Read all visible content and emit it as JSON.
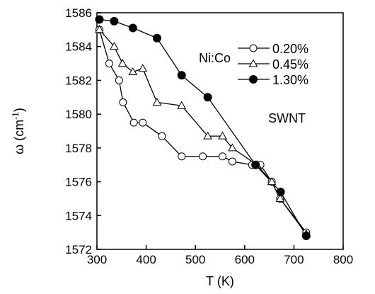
{
  "chart_data": {
    "type": "line",
    "xlabel": "T (K)",
    "ylabel_prefix": "ω (cm",
    "ylabel_sup": "-1",
    "ylabel_suffix": ")",
    "xlim": [
      300,
      800
    ],
    "ylim": [
      1572,
      1586
    ],
    "x_ticks": [
      300,
      400,
      500,
      600,
      700,
      800
    ],
    "y_ticks": [
      1572,
      1574,
      1576,
      1578,
      1580,
      1582,
      1584,
      1586
    ],
    "legend_title": "Ni:Co",
    "annotation": "SWNT",
    "legend_position": "top-right",
    "grid": false,
    "series": [
      {
        "name": "0.20%",
        "marker": "circle-open",
        "points": [
          [
            305,
            1585.0
          ],
          [
            325,
            1583.0
          ],
          [
            345,
            1582.0
          ],
          [
            353,
            1580.7
          ],
          [
            375,
            1579.5
          ],
          [
            393,
            1579.5
          ],
          [
            432,
            1578.7
          ],
          [
            472,
            1577.5
          ],
          [
            515,
            1577.5
          ],
          [
            555,
            1577.5
          ],
          [
            575,
            1577.2
          ],
          [
            615,
            1577.0
          ],
          [
            632,
            1577.0
          ],
          [
            655,
            1576.0
          ],
          [
            672,
            1575.0
          ],
          [
            725,
            1573.0
          ]
        ]
      },
      {
        "name": "0.45%",
        "marker": "triangle-open",
        "points": [
          [
            305,
            1585.0
          ],
          [
            335,
            1584.0
          ],
          [
            352,
            1583.0
          ],
          [
            373,
            1582.5
          ],
          [
            393,
            1582.7
          ],
          [
            422,
            1580.7
          ],
          [
            472,
            1580.5
          ],
          [
            525,
            1578.7
          ],
          [
            555,
            1578.7
          ],
          [
            575,
            1578.0
          ],
          [
            625,
            1577.0
          ],
          [
            655,
            1576.0
          ],
          [
            672,
            1575.0
          ],
          [
            725,
            1572.9
          ]
        ]
      },
      {
        "name": "1.30%",
        "marker": "circle-filled",
        "points": [
          [
            305,
            1585.6
          ],
          [
            335,
            1585.5
          ],
          [
            373,
            1585.1
          ],
          [
            422,
            1584.5
          ],
          [
            472,
            1582.3
          ],
          [
            525,
            1581.0
          ],
          [
            622,
            1577.0
          ],
          [
            673,
            1575.4
          ],
          [
            725,
            1572.8
          ]
        ]
      }
    ]
  }
}
